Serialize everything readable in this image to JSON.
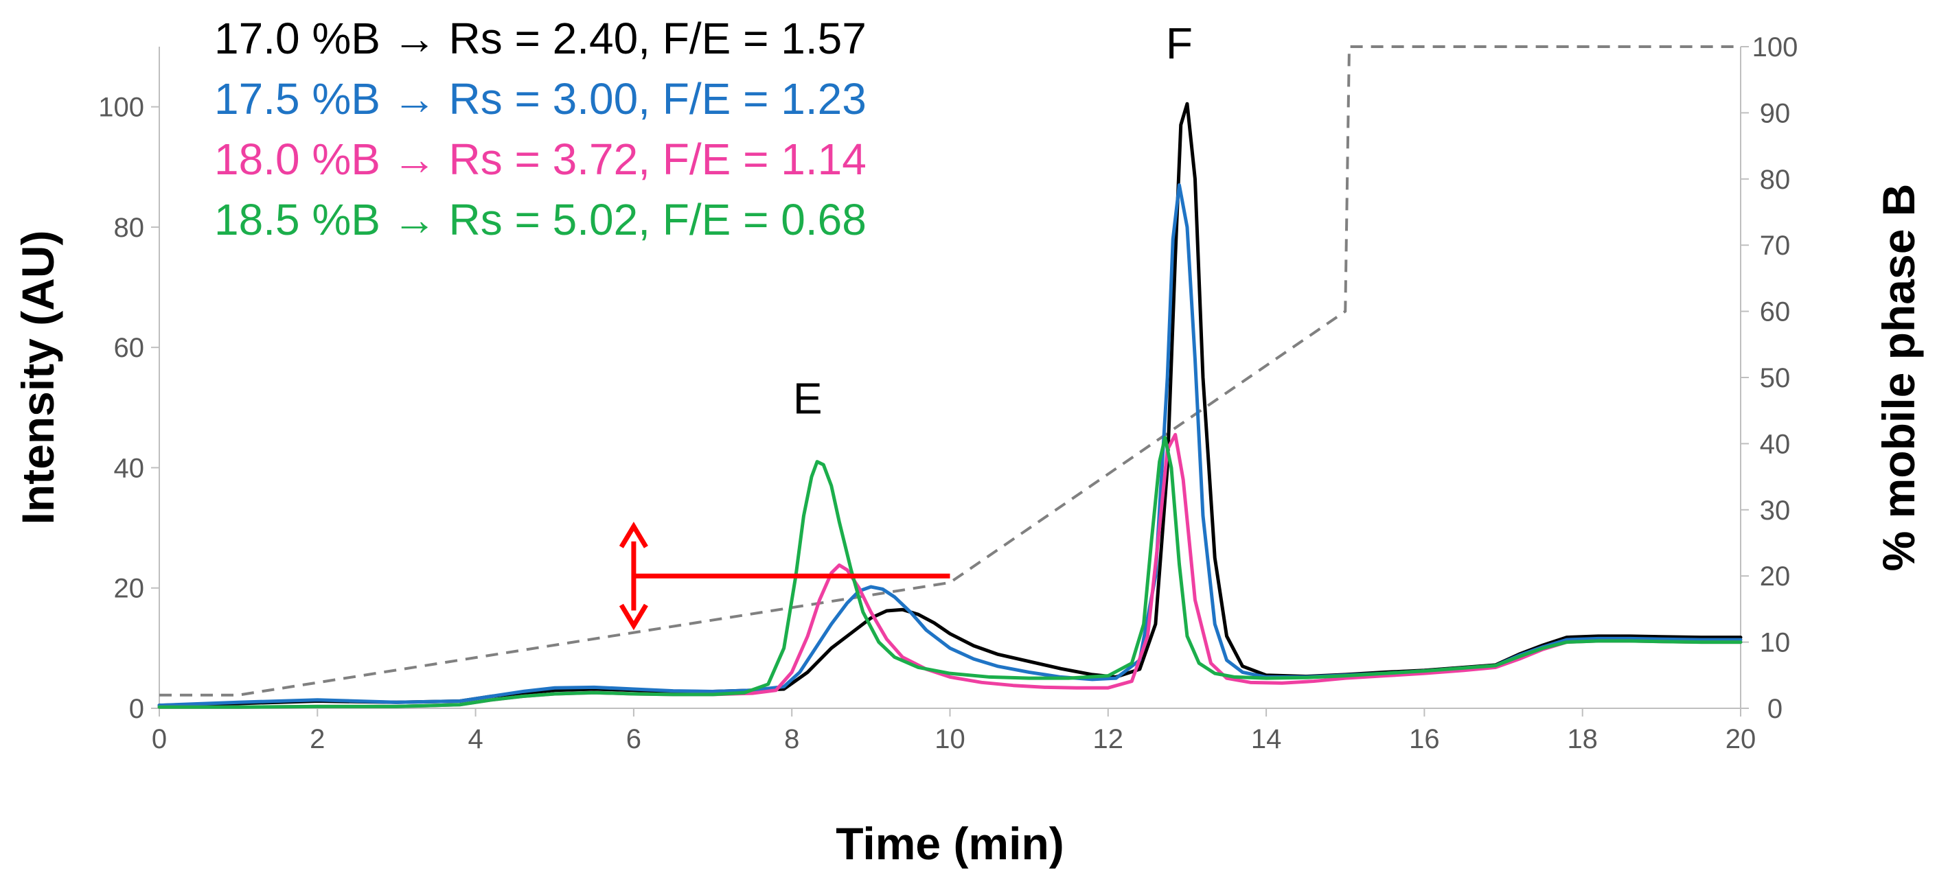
{
  "chart_data": {
    "type": "line",
    "title": "",
    "xlabel": "Time (min)",
    "ylabel": "Intensity (AU)",
    "y2label": "% mobile phase B",
    "xlim": [
      0,
      20
    ],
    "ylim": [
      0,
      110
    ],
    "y2lim": [
      0,
      100
    ],
    "xticks": [
      "0",
      "2",
      "4",
      "6",
      "8",
      "10",
      "12",
      "14",
      "16",
      "18",
      "20"
    ],
    "yticks": [
      "0",
      "20",
      "40",
      "60",
      "80",
      "100"
    ],
    "y2ticks": [
      "0",
      "10",
      "20",
      "30",
      "40",
      "50",
      "60",
      "70",
      "80",
      "90",
      "100"
    ],
    "legend": [
      {
        "label": "17.0 %B",
        "arrow": "→",
        "stats": "Rs = 2.40, F/E = 1.57",
        "color": "#000000"
      },
      {
        "label": "17.5 %B",
        "arrow": "→",
        "stats": "Rs = 3.00, F/E = 1.23",
        "color": "#1F74C5"
      },
      {
        "label": "18.0 %B",
        "arrow": "→",
        "stats": "Rs = 3.72, F/E = 1.14",
        "color": "#EF3FA1"
      },
      {
        "label": "18.5 %B",
        "arrow": "→",
        "stats": "Rs = 5.02, F/E = 0.68",
        "color": "#1BAE4B"
      }
    ],
    "peak_labels": [
      {
        "text": "E",
        "x": 8.2,
        "y": 49
      },
      {
        "text": "F",
        "x": 12.9,
        "y": 108
      }
    ],
    "series": [
      {
        "name": "17.0 %B",
        "color": "#000000",
        "x": [
          0,
          1,
          2,
          3,
          3.8,
          4.2,
          4.6,
          5,
          5.5,
          6,
          6.5,
          7,
          7.5,
          7.9,
          8.2,
          8.5,
          8.8,
          9.0,
          9.2,
          9.4,
          9.6,
          9.8,
          10,
          10.3,
          10.6,
          11,
          11.4,
          11.8,
          12.1,
          12.4,
          12.6,
          12.75,
          12.85,
          12.92,
          13.0,
          13.1,
          13.2,
          13.35,
          13.5,
          13.7,
          14,
          14.5,
          15,
          15.5,
          16,
          16.5,
          16.9,
          17.2,
          17.5,
          17.8,
          18.2,
          18.6,
          19,
          19.5,
          20
        ],
        "y": [
          0.5,
          0.8,
          1.2,
          1.0,
          1.2,
          2.0,
          2.5,
          3.0,
          3.2,
          3.0,
          2.8,
          2.8,
          3.0,
          3.2,
          6.0,
          10.0,
          13.0,
          15.0,
          16.2,
          16.4,
          15.6,
          14.2,
          12.4,
          10.4,
          9.0,
          7.8,
          6.6,
          5.6,
          5.2,
          6.5,
          14.0,
          40.0,
          75.0,
          97.0,
          100.5,
          88.0,
          55.0,
          25.0,
          12.0,
          7.0,
          5.5,
          5.3,
          5.6,
          6.0,
          6.3,
          6.8,
          7.2,
          9.0,
          10.5,
          11.8,
          12.0,
          12.0,
          11.9,
          11.8,
          11.8
        ]
      },
      {
        "name": "17.5 %B",
        "color": "#1F74C5",
        "x": [
          0,
          1,
          2,
          3,
          3.8,
          4.2,
          4.6,
          5,
          5.5,
          6,
          6.5,
          7,
          7.5,
          7.9,
          8.1,
          8.3,
          8.5,
          8.7,
          8.85,
          9.0,
          9.15,
          9.3,
          9.5,
          9.7,
          10,
          10.3,
          10.6,
          11,
          11.4,
          11.8,
          12.1,
          12.4,
          12.6,
          12.75,
          12.82,
          12.9,
          13.0,
          13.1,
          13.2,
          13.35,
          13.5,
          13.7,
          14,
          14.5,
          15,
          15.5,
          16,
          16.5,
          16.9,
          17.2,
          17.5,
          17.8,
          18.2,
          18.6,
          19,
          19.5,
          20
        ],
        "y": [
          0.5,
          1.0,
          1.4,
          1.0,
          1.2,
          2.0,
          2.8,
          3.4,
          3.5,
          3.2,
          2.9,
          2.8,
          3.0,
          3.6,
          6.0,
          10.0,
          14.0,
          17.5,
          19.5,
          20.2,
          19.8,
          18.5,
          16.0,
          13.0,
          10.0,
          8.2,
          7.0,
          6.0,
          5.2,
          4.8,
          5.0,
          8.0,
          22.0,
          55.0,
          78.0,
          87.0,
          80.0,
          58.0,
          32.0,
          14.0,
          8.0,
          6.0,
          5.2,
          5.2,
          5.5,
          5.8,
          6.2,
          6.7,
          7.1,
          8.8,
          10.2,
          11.4,
          11.6,
          11.6,
          11.5,
          11.4,
          11.4
        ]
      },
      {
        "name": "18.0 %B",
        "color": "#EF3FA1",
        "x": [
          0,
          1,
          2,
          3,
          3.8,
          4.2,
          4.6,
          5,
          5.5,
          6,
          6.5,
          7,
          7.5,
          7.8,
          8.0,
          8.2,
          8.35,
          8.5,
          8.6,
          8.7,
          8.85,
          9.0,
          9.2,
          9.4,
          9.7,
          10,
          10.4,
          10.8,
          11.2,
          11.6,
          12.0,
          12.3,
          12.5,
          12.65,
          12.75,
          12.85,
          12.95,
          13.1,
          13.3,
          13.5,
          13.8,
          14.2,
          14.6,
          15,
          15.5,
          16,
          16.5,
          16.9,
          17.2,
          17.5,
          17.8,
          18.2,
          18.6,
          19,
          19.5,
          20
        ],
        "y": [
          0.2,
          0.2,
          0.3,
          0.3,
          0.6,
          1.4,
          2.0,
          2.4,
          2.6,
          2.4,
          2.3,
          2.3,
          2.5,
          3.0,
          6.0,
          12.0,
          18.0,
          22.5,
          23.8,
          23.0,
          20.0,
          16.0,
          11.5,
          8.5,
          6.5,
          5.2,
          4.3,
          3.8,
          3.5,
          3.4,
          3.4,
          4.5,
          12.0,
          30.0,
          43.0,
          45.5,
          38.0,
          18.0,
          7.5,
          5.0,
          4.3,
          4.2,
          4.5,
          5.0,
          5.4,
          5.8,
          6.3,
          6.8,
          8.2,
          9.8,
          11.0,
          11.2,
          11.2,
          11.1,
          11.0,
          11.0
        ]
      },
      {
        "name": "18.5 %B",
        "color": "#1BAE4B",
        "x": [
          0,
          1,
          2,
          3,
          3.8,
          4.2,
          4.6,
          5,
          5.5,
          6,
          6.5,
          7,
          7.4,
          7.7,
          7.9,
          8.05,
          8.15,
          8.25,
          8.32,
          8.4,
          8.5,
          8.6,
          8.75,
          8.9,
          9.1,
          9.3,
          9.6,
          10,
          10.5,
          11,
          11.5,
          12.0,
          12.3,
          12.45,
          12.55,
          12.65,
          12.72,
          12.8,
          12.9,
          13.0,
          13.15,
          13.35,
          13.6,
          14,
          14.5,
          15,
          15.5,
          16,
          16.5,
          16.9,
          17.2,
          17.5,
          17.8,
          18.2,
          18.6,
          19,
          19.5,
          20
        ],
        "y": [
          0.2,
          0.2,
          0.3,
          0.3,
          0.6,
          1.4,
          2.0,
          2.4,
          2.6,
          2.4,
          2.3,
          2.3,
          2.6,
          4.0,
          10.0,
          22.0,
          32.0,
          38.5,
          41.0,
          40.5,
          37.0,
          31.0,
          23.0,
          16.0,
          11.0,
          8.5,
          6.8,
          5.8,
          5.2,
          5.0,
          5.0,
          5.4,
          7.5,
          14.0,
          28.0,
          41.0,
          45.0,
          40.0,
          24.0,
          12.0,
          7.5,
          5.8,
          5.2,
          5.0,
          5.1,
          5.4,
          5.8,
          6.2,
          6.7,
          7.1,
          8.6,
          10.0,
          11.0,
          11.2,
          11.2,
          11.1,
          11.0,
          11.0
        ]
      }
    ],
    "gradient": {
      "name": "% mobile phase B",
      "color": "#808080",
      "style": "dashed",
      "axis": "right",
      "x": [
        0,
        1,
        10,
        15,
        15.05,
        20
      ],
      "y": [
        2,
        2,
        19,
        60,
        100,
        100
      ]
    },
    "annotation": {
      "type": "range-marker",
      "color": "#FF0000",
      "x_range": [
        6,
        10
      ],
      "y": 20,
      "arrow_y_range": [
        12.5,
        27.5
      ]
    }
  }
}
